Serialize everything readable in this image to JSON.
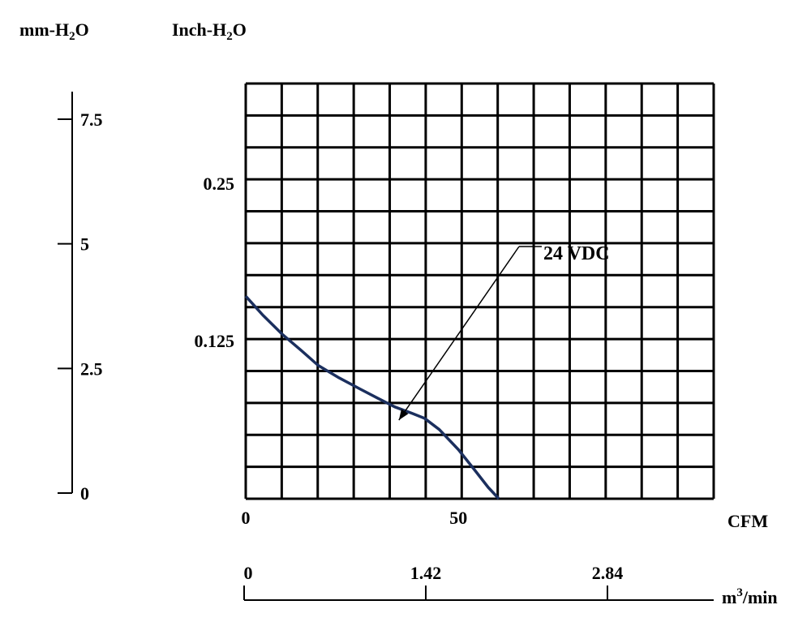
{
  "chart_data": {
    "type": "line",
    "x_primary": {
      "label": "CFM",
      "ticks": [
        "0",
        "50"
      ],
      "tick_values": [
        0,
        50
      ],
      "range": [
        0,
        110
      ]
    },
    "x_secondary": {
      "label_base": "m",
      "label_exp": "3",
      "label_tail": "/min",
      "ticks": [
        "0",
        "1.42",
        "2.84"
      ],
      "tick_values": [
        0,
        1.42,
        2.84
      ]
    },
    "y_left": {
      "label_base": "mm-H",
      "label_sub": "2",
      "label_tail": "O",
      "ticks": [
        "0",
        "2.5",
        "5",
        "7.5"
      ],
      "tick_values": [
        0,
        2.5,
        5,
        7.5
      ]
    },
    "y_right": {
      "label_base": "Inch-H",
      "label_sub": "2",
      "label_tail": "O",
      "ticks": [
        "0.125",
        "0.25"
      ],
      "tick_values": [
        0.125,
        0.25
      ],
      "range": [
        0,
        0.33
      ]
    },
    "grid": true,
    "series": [
      {
        "name": "24 VDC",
        "color": "#1b2f5e",
        "points": [
          [
            0,
            0.161
          ],
          [
            4,
            0.146
          ],
          [
            8.5,
            0.131
          ],
          [
            13,
            0.118
          ],
          [
            17,
            0.106
          ],
          [
            22,
            0.096
          ],
          [
            27,
            0.087
          ],
          [
            31,
            0.08
          ],
          [
            35,
            0.073
          ],
          [
            39,
            0.068
          ],
          [
            42,
            0.064
          ],
          [
            45.5,
            0.055
          ],
          [
            50,
            0.039
          ],
          [
            54,
            0.022
          ],
          [
            57,
            0.009
          ],
          [
            59.5,
            0
          ]
        ]
      }
    ],
    "annotation": {
      "text": "24 VDC",
      "arrow_target": [
        36,
        0.0625
      ]
    }
  }
}
